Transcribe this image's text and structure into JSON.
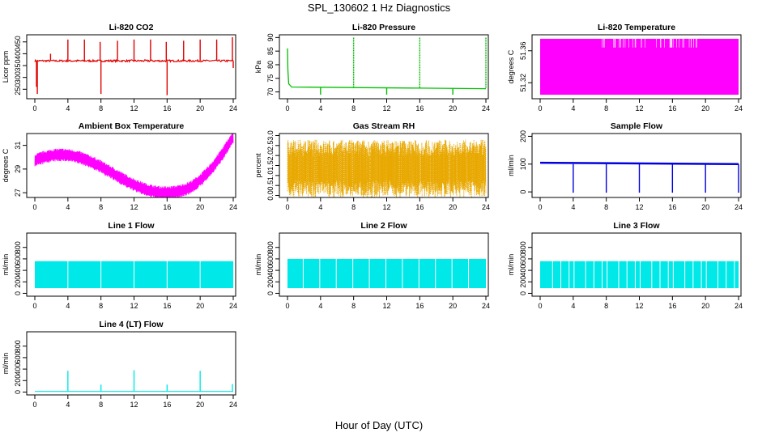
{
  "title": "SPL_130602  1 Hz Diagnostics",
  "xlabel": "Hour of Day (UTC)",
  "chart_data": [
    {
      "type": "line",
      "title": "Li-820 CO2",
      "ylabel": "Licor ppm",
      "color": "#e00000",
      "xlim": [
        0,
        24
      ],
      "xticks": [
        0,
        4,
        8,
        12,
        16,
        20,
        24
      ],
      "ylim": [
        210,
        480
      ],
      "yticks": [
        250,
        300,
        350,
        400,
        450
      ],
      "pattern": "baseline",
      "base": 370,
      "noise": 8,
      "spikes": [
        [
          0.2,
          260
        ],
        [
          0.3,
          230
        ],
        [
          1.9,
          400
        ],
        [
          4.0,
          460
        ],
        [
          6.0,
          460
        ],
        [
          7.9,
          450
        ],
        [
          8.0,
          230
        ],
        [
          10.0,
          455
        ],
        [
          12.0,
          460
        ],
        [
          14.0,
          460
        ],
        [
          15.9,
          450
        ],
        [
          16.0,
          225
        ],
        [
          18.0,
          455
        ],
        [
          20.0,
          460
        ],
        [
          22.0,
          460
        ],
        [
          23.9,
          470
        ],
        [
          24.0,
          340
        ]
      ]
    },
    {
      "type": "line",
      "title": "Li-820 Pressure",
      "ylabel": "kPa",
      "color": "#00c000",
      "xlim": [
        0,
        24
      ],
      "xticks": [
        0,
        4,
        8,
        12,
        16,
        20,
        24
      ],
      "ylim": [
        67.5,
        91
      ],
      "yticks": [
        70,
        75,
        80,
        85,
        90
      ],
      "pattern": "pressure"
    },
    {
      "type": "line",
      "title": "Li-820 Temperature",
      "ylabel": "degrees C",
      "color": "#ff00ff",
      "xlim": [
        0,
        24
      ],
      "xticks": [
        0,
        4,
        8,
        12,
        16,
        20,
        24
      ],
      "ylim": [
        51.3,
        51.38
      ],
      "yticks": [
        51.32,
        51.36
      ],
      "pattern": "band",
      "low": 51.305,
      "high": 51.375
    },
    {
      "type": "line",
      "title": "Ambient Box Temperature",
      "ylabel": "degrees C",
      "color": "#ff00ff",
      "xlim": [
        0,
        24
      ],
      "xticks": [
        0,
        4,
        8,
        12,
        16,
        20,
        24
      ],
      "ylim": [
        26.6,
        32
      ],
      "yticks": [
        27,
        29,
        31
      ],
      "pattern": "ambient"
    },
    {
      "type": "line",
      "title": "Gas Stream RH",
      "ylabel": "percent",
      "color": "#e8a800",
      "xlim": [
        0,
        24
      ],
      "xticks": [
        0,
        4,
        8,
        12,
        16,
        20,
        24
      ],
      "ylim": [
        -0.1,
        3.1
      ],
      "yticks": [
        0.0,
        0.5,
        1.0,
        1.5,
        2.0,
        2.5,
        3.0
      ],
      "pattern": "rh"
    },
    {
      "type": "line",
      "title": "Sample Flow",
      "ylabel": "ml/min",
      "color": "#0000e0",
      "xlim": [
        0,
        24
      ],
      "xticks": [
        0,
        4,
        8,
        12,
        16,
        20,
        24
      ],
      "ylim": [
        -20,
        210
      ],
      "yticks": [
        0,
        100,
        200
      ],
      "pattern": "sample"
    },
    {
      "type": "line",
      "title": "Line 1 Flow",
      "ylabel": "ml/min",
      "color": "#00e8e8",
      "xlim": [
        0,
        24
      ],
      "xticks": [
        0,
        4,
        8,
        12,
        16,
        20,
        24
      ],
      "ylim": [
        -50,
        1050
      ],
      "yticks": [
        0,
        200,
        400,
        600,
        800
      ],
      "pattern": "lineflow",
      "low": 90,
      "high": 560,
      "gaps": [
        4,
        8,
        12,
        16,
        20
      ]
    },
    {
      "type": "line",
      "title": "Line 2 Flow",
      "ylabel": "ml/min",
      "color": "#00e8e8",
      "xlim": [
        0,
        24
      ],
      "xticks": [
        0,
        4,
        8,
        12,
        16,
        20,
        24
      ],
      "ylim": [
        -50,
        1050
      ],
      "yticks": [
        0,
        200,
        400,
        600,
        800
      ],
      "pattern": "lineflow",
      "low": 90,
      "high": 600,
      "gaps": [
        1.9,
        3.9,
        5.9,
        7.9,
        9.9,
        11.9,
        13.9,
        15.9,
        17.9,
        19.9,
        21.9
      ]
    },
    {
      "type": "line",
      "title": "Line 3 Flow",
      "ylabel": "ml/min",
      "color": "#00e8e8",
      "xlim": [
        0,
        24
      ],
      "xticks": [
        0,
        4,
        8,
        12,
        16,
        20,
        24
      ],
      "ylim": [
        -50,
        1050
      ],
      "yticks": [
        0,
        200,
        400,
        600,
        800
      ],
      "pattern": "lineflow",
      "low": 90,
      "high": 560,
      "gaps": [
        1.5,
        2.5,
        3.5,
        4.1,
        5.5,
        6.5,
        7.5,
        8.1,
        9.5,
        10.5,
        11.5,
        12.1,
        13.5,
        14.5,
        15.5,
        16.1,
        17.5,
        18.5,
        19.5,
        20.1,
        21.5,
        22.5,
        23.5
      ]
    },
    {
      "type": "line",
      "title": "Line 4 (LT) Flow",
      "ylabel": "ml/min",
      "color": "#00e8e8",
      "xlim": [
        0,
        24
      ],
      "xticks": [
        0,
        4,
        8,
        12,
        16,
        20,
        24
      ],
      "ylim": [
        -50,
        1050
      ],
      "yticks": [
        0,
        200,
        400,
        600,
        800
      ],
      "pattern": "baseline",
      "base": 10,
      "noise": 0,
      "spikes": [
        [
          4.0,
          370
        ],
        [
          8.0,
          130
        ],
        [
          12.0,
          380
        ],
        [
          16.0,
          130
        ],
        [
          20.0,
          370
        ],
        [
          23.9,
          140
        ]
      ]
    }
  ]
}
